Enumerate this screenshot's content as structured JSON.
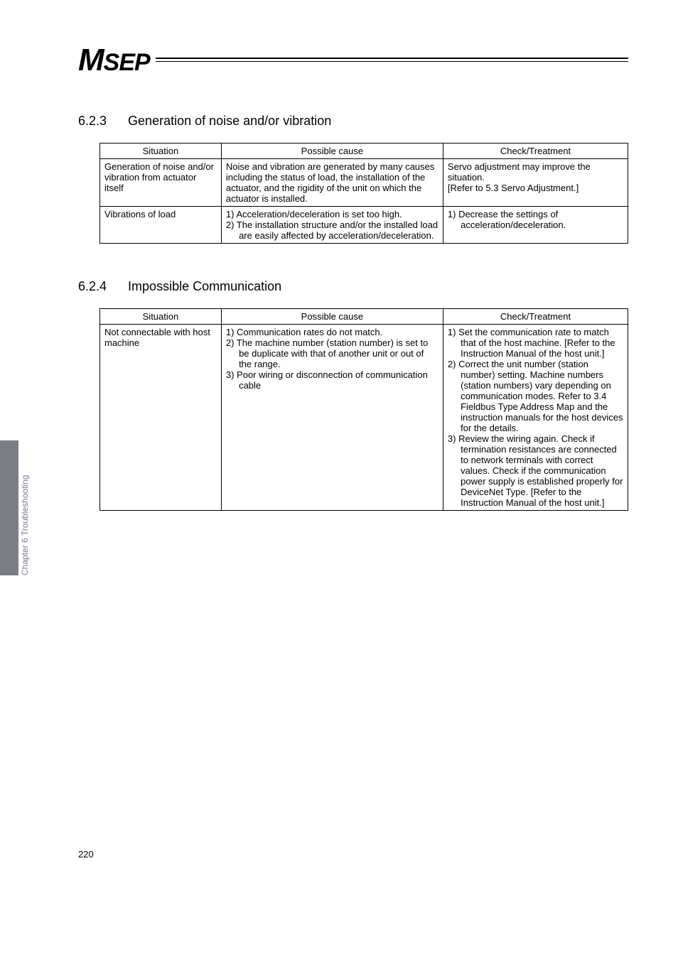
{
  "logo": {
    "m": "M",
    "sep": "SEP"
  },
  "side_label": "Chapter 6 Troubleshooting",
  "page_number": "220",
  "section_623": {
    "num": "6.2.3",
    "title": "Generation of noise and/or vibration",
    "headers": {
      "c1": "Situation",
      "c2": "Possible cause",
      "c3": "Check/Treatment"
    },
    "rows": [
      {
        "situation": "Generation of noise and/or vibration from actuator itself",
        "cause": "Noise and vibration are generated by many causes including the status of load, the installation of the actuator, and the rigidity of the unit on which the actuator is installed.",
        "check": "Servo adjustment may improve the situation.\n[Refer to 5.3 Servo Adjustment.]"
      },
      {
        "situation": "Vibrations of load",
        "cause_items": [
          "1) Acceleration/deceleration is set too high.",
          "2) The installation structure and/or the installed load are easily affected by acceleration/deceleration."
        ],
        "check_items": [
          "1) Decrease the settings of acceleration/deceleration."
        ]
      }
    ]
  },
  "section_624": {
    "num": "6.2.4",
    "title": "Impossible Communication",
    "headers": {
      "c1": "Situation",
      "c2": "Possible cause",
      "c3": "Check/Treatment"
    },
    "rows": [
      {
        "situation": "Not connectable with host machine",
        "cause_items": [
          "1) Communication rates do not match.",
          "2) The machine number (station number) is set to be duplicate with that of another unit or out of the range.",
          "3) Poor wiring or disconnection of communication cable"
        ],
        "check_items": [
          "1) Set the communication rate to match that of the host machine. [Refer to the Instruction Manual of the host unit.]",
          "2) Correct the unit number (station number) setting. Machine numbers (station numbers) vary depending on communication modes. Refer to 3.4 Fieldbus Type Address Map and the instruction manuals for the host devices for the details.",
          "3) Review the wiring again. Check if termination resistances are connected to network terminals with correct values. Check if the communication power supply is established properly for DeviceNet Type. [Refer to the Instruction Manual of the host unit.]"
        ]
      }
    ]
  }
}
